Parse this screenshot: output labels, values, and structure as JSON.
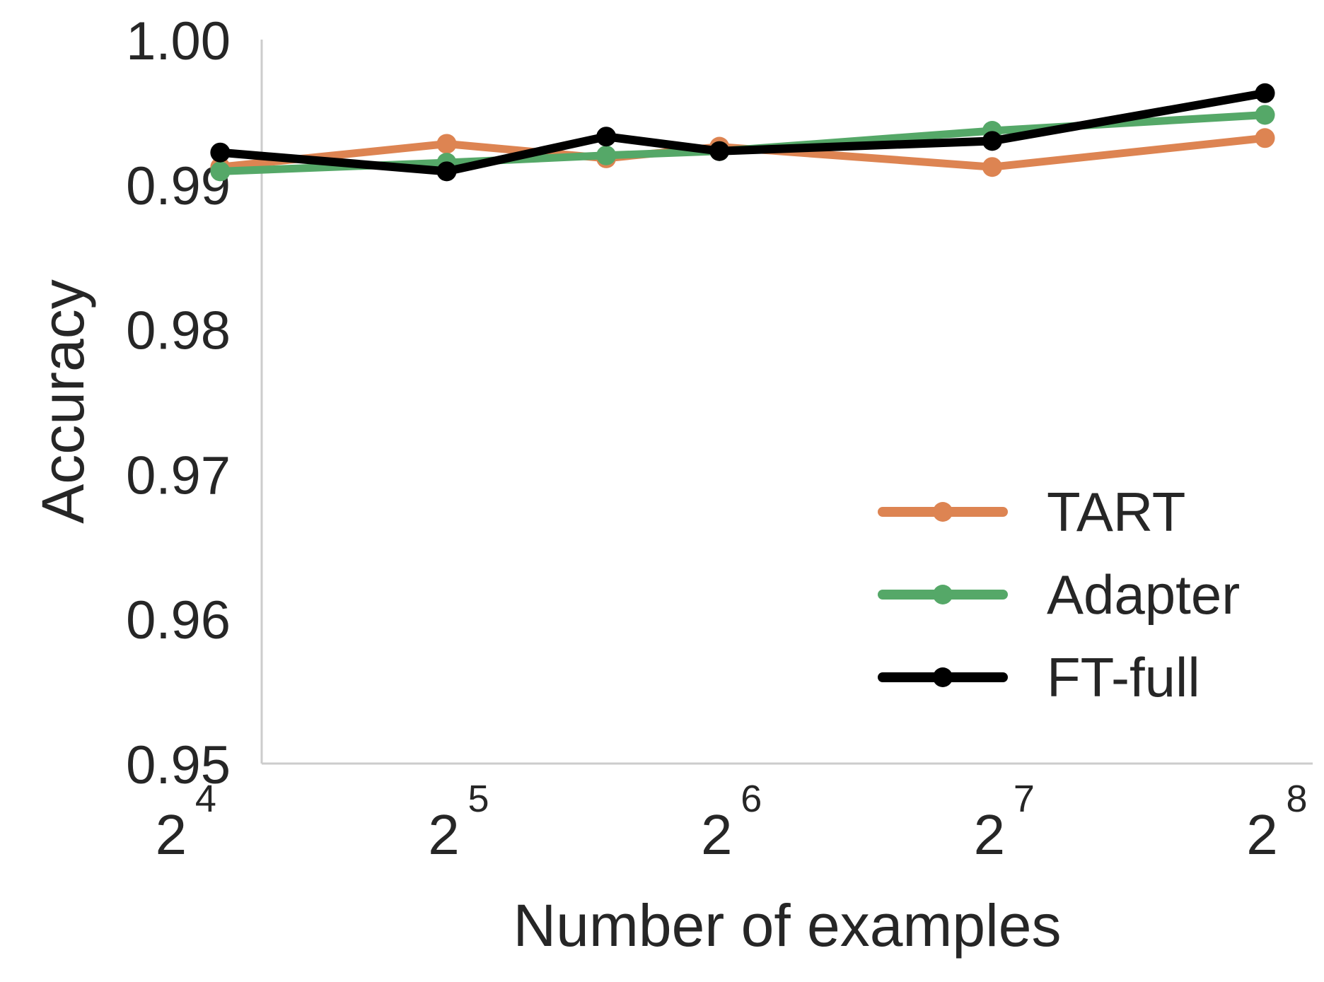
{
  "chart_data": {
    "type": "line",
    "title": "",
    "xlabel": "Number of examples",
    "ylabel": "Accuracy",
    "x_scale": "log2",
    "xlim": [
      20,
      289
    ],
    "ylim": [
      0.95,
      1.0
    ],
    "x_ticks": [
      {
        "value": 16,
        "base": "2",
        "exp": "4"
      },
      {
        "value": 32,
        "base": "2",
        "exp": "5"
      },
      {
        "value": 64,
        "base": "2",
        "exp": "6"
      },
      {
        "value": 128,
        "base": "2",
        "exp": "7"
      },
      {
        "value": 256,
        "base": "2",
        "exp": "8"
      }
    ],
    "y_ticks": [
      "0.95",
      "0.96",
      "0.97",
      "0.98",
      "0.99",
      "1.00"
    ],
    "grid": false,
    "legend_position": "lower-right",
    "x": [
      18,
      32,
      48,
      64,
      128,
      256
    ],
    "series": [
      {
        "name": "TART",
        "color": "#dd8452",
        "values": [
          0.9912,
          0.9928,
          0.9918,
          0.9926,
          0.9912,
          0.9932
        ]
      },
      {
        "name": "Adapter",
        "color": "#55a868",
        "values": [
          0.9909,
          0.9915,
          0.992,
          0.9923,
          0.9937,
          0.9948
        ]
      },
      {
        "name": "FT-full",
        "color": "#000000",
        "values": [
          0.9922,
          0.9909,
          0.9933,
          0.9923,
          0.993,
          0.9963
        ]
      }
    ]
  }
}
